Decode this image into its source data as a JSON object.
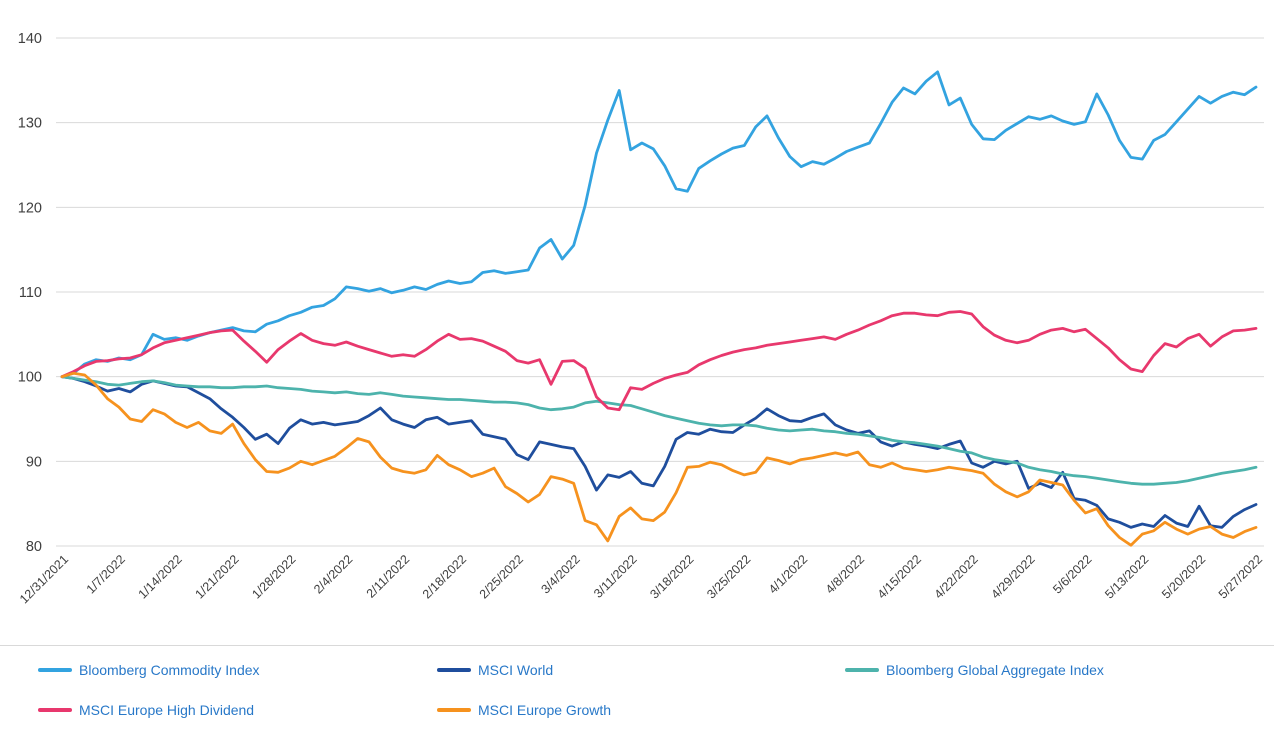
{
  "chart_data": {
    "type": "line",
    "title": "",
    "xlabel": "",
    "ylabel": "",
    "ylim": [
      80,
      140
    ],
    "y_ticks": [
      80,
      90,
      100,
      110,
      120,
      130,
      140
    ],
    "grid": "horizontal",
    "legend_position": "bottom",
    "points_per_interval": 5,
    "axis_text_color": "#3f3f3f",
    "grid_color": "#d9d9d9",
    "legend_text_color": "#2878c8",
    "x_tick_labels": [
      "12/31/2021",
      "1/7/2022",
      "1/14/2022",
      "1/21/2022",
      "1/28/2022",
      "2/4/2022",
      "2/11/2022",
      "2/18/2022",
      "2/25/2022",
      "3/4/2022",
      "3/11/2022",
      "3/18/2022",
      "3/25/2022",
      "4/1/2022",
      "4/8/2022",
      "4/15/2022",
      "4/22/2022",
      "4/29/2022",
      "5/6/2022",
      "5/13/2022",
      "5/20/2022",
      "5/27/2022"
    ],
    "series": [
      {
        "name": "Bloomberg Commodity Index",
        "color": "#33a3e0",
        "values": [
          100,
          100.4,
          101.5,
          102.0,
          101.8,
          102.2,
          102.0,
          102.6,
          105.0,
          104.4,
          104.6,
          104.3,
          104.8,
          105.2,
          105.5,
          105.8,
          105.4,
          105.3,
          106.2,
          106.6,
          107.2,
          107.6,
          108.2,
          108.4,
          109.2,
          110.6,
          110.4,
          110.1,
          110.4,
          109.9,
          110.2,
          110.6,
          110.3,
          110.9,
          111.3,
          111.0,
          111.2,
          112.3,
          112.5,
          112.2,
          112.4,
          112.6,
          115.2,
          116.2,
          113.9,
          115.5,
          120.2,
          126.4,
          130.3,
          133.8,
          126.8,
          127.6,
          126.9,
          124.9,
          122.2,
          121.9,
          124.6,
          125.5,
          126.3,
          127.0,
          127.3,
          129.5,
          130.8,
          128.2,
          126.0,
          124.8,
          125.4,
          125.1,
          125.8,
          126.6,
          127.1,
          127.6,
          129.9,
          132.4,
          134.1,
          133.4,
          134.9,
          136.0,
          132.1,
          132.9,
          129.8,
          128.1,
          128.0,
          129.1,
          129.9,
          130.7,
          130.4,
          130.8,
          130.2,
          129.8,
          130.1,
          133.4,
          130.9,
          127.9,
          125.9,
          125.7,
          127.9,
          128.6,
          130.1,
          131.6,
          133.1,
          132.3,
          133.1,
          133.6,
          133.3,
          134.2
        ]
      },
      {
        "name": "MSCI World",
        "color": "#1f4e9d",
        "values": [
          100,
          99.8,
          99.4,
          98.9,
          98.3,
          98.6,
          98.2,
          99.1,
          99.5,
          99.2,
          98.9,
          98.8,
          98.1,
          97.4,
          96.2,
          95.2,
          94.0,
          92.6,
          93.2,
          92.1,
          93.9,
          94.9,
          94.4,
          94.6,
          94.3,
          94.5,
          94.7,
          95.4,
          96.3,
          94.9,
          94.4,
          94.0,
          94.9,
          95.2,
          94.4,
          94.6,
          94.8,
          93.2,
          92.9,
          92.6,
          90.8,
          90.2,
          92.3,
          92.0,
          91.7,
          91.5,
          89.4,
          86.6,
          88.4,
          88.1,
          88.8,
          87.4,
          87.1,
          89.4,
          92.6,
          93.4,
          93.2,
          93.8,
          93.5,
          93.4,
          94.3,
          95.1,
          96.2,
          95.4,
          94.8,
          94.7,
          95.2,
          95.6,
          94.3,
          93.7,
          93.3,
          93.6,
          92.3,
          91.8,
          92.3,
          92.0,
          91.8,
          91.5,
          92.0,
          92.4,
          89.8,
          89.3,
          90.0,
          89.7,
          90.0,
          86.8,
          87.4,
          86.9,
          88.7,
          85.6,
          85.4,
          84.8,
          83.2,
          82.8,
          82.2,
          82.6,
          82.3,
          83.6,
          82.7,
          82.3,
          84.7,
          82.4,
          82.2,
          83.5,
          84.3,
          84.9
        ]
      },
      {
        "name": "Bloomberg Global Aggregate Index",
        "color": "#4db3ac",
        "values": [
          100,
          99.8,
          99.6,
          99.4,
          99.1,
          99.0,
          99.2,
          99.4,
          99.5,
          99.3,
          99.0,
          98.9,
          98.8,
          98.8,
          98.7,
          98.7,
          98.8,
          98.8,
          98.9,
          98.7,
          98.6,
          98.5,
          98.3,
          98.2,
          98.1,
          98.2,
          98.0,
          97.9,
          98.1,
          97.9,
          97.7,
          97.6,
          97.5,
          97.4,
          97.3,
          97.3,
          97.2,
          97.1,
          97.0,
          97.0,
          96.9,
          96.7,
          96.3,
          96.1,
          96.2,
          96.4,
          96.9,
          97.1,
          96.9,
          96.7,
          96.6,
          96.2,
          95.8,
          95.4,
          95.1,
          94.8,
          94.5,
          94.3,
          94.2,
          94.3,
          94.3,
          94.2,
          93.9,
          93.7,
          93.6,
          93.7,
          93.8,
          93.6,
          93.5,
          93.3,
          93.2,
          93.0,
          92.8,
          92.5,
          92.3,
          92.2,
          92.0,
          91.8,
          91.5,
          91.2,
          91.0,
          90.5,
          90.2,
          90.0,
          89.8,
          89.3,
          89.0,
          88.8,
          88.5,
          88.3,
          88.2,
          88.0,
          87.8,
          87.6,
          87.4,
          87.3,
          87.3,
          87.4,
          87.5,
          87.7,
          88.0,
          88.3,
          88.6,
          88.8,
          89.0,
          89.3
        ]
      },
      {
        "name": "MSCI Europe High Dividend",
        "color": "#e8386d",
        "values": [
          100,
          100.6,
          101.3,
          101.8,
          101.9,
          102.1,
          102.2,
          102.6,
          103.4,
          104.0,
          104.3,
          104.6,
          104.9,
          105.2,
          105.4,
          105.5,
          104.2,
          103.0,
          101.7,
          103.2,
          104.2,
          105.1,
          104.3,
          103.9,
          103.7,
          104.1,
          103.6,
          103.2,
          102.8,
          102.4,
          102.6,
          102.4,
          103.2,
          104.2,
          105.0,
          104.4,
          104.5,
          104.2,
          103.6,
          103.0,
          101.9,
          101.6,
          102.0,
          99.1,
          101.8,
          101.9,
          101.0,
          97.6,
          96.3,
          96.1,
          98.7,
          98.5,
          99.2,
          99.8,
          100.2,
          100.5,
          101.4,
          102.0,
          102.5,
          102.9,
          103.2,
          103.4,
          103.7,
          103.9,
          104.1,
          104.3,
          104.5,
          104.7,
          104.4,
          105.0,
          105.5,
          106.1,
          106.6,
          107.2,
          107.5,
          107.5,
          107.3,
          107.2,
          107.6,
          107.7,
          107.4,
          105.9,
          104.9,
          104.3,
          104.0,
          104.3,
          105.0,
          105.5,
          105.7,
          105.3,
          105.6,
          104.5,
          103.4,
          102.0,
          100.9,
          100.6,
          102.5,
          103.9,
          103.5,
          104.5,
          105.0,
          103.6,
          104.7,
          105.4,
          105.5,
          105.7
        ]
      },
      {
        "name": "MSCI Europe Growth",
        "color": "#f6921e",
        "values": [
          100,
          100.4,
          100.2,
          99.0,
          97.4,
          96.4,
          95.0,
          94.7,
          96.1,
          95.6,
          94.6,
          94.0,
          94.6,
          93.6,
          93.3,
          94.4,
          92.1,
          90.2,
          88.8,
          88.7,
          89.2,
          90.0,
          89.6,
          90.1,
          90.6,
          91.6,
          92.7,
          92.3,
          90.5,
          89.2,
          88.8,
          88.6,
          89.0,
          90.7,
          89.6,
          89.0,
          88.2,
          88.6,
          89.2,
          87.0,
          86.2,
          85.2,
          86.1,
          88.2,
          87.9,
          87.4,
          83.0,
          82.5,
          80.6,
          83.5,
          84.5,
          83.2,
          83.0,
          84.0,
          86.3,
          89.3,
          89.4,
          89.9,
          89.6,
          88.9,
          88.4,
          88.7,
          90.4,
          90.1,
          89.7,
          90.2,
          90.4,
          90.7,
          91.0,
          90.7,
          91.1,
          89.6,
          89.3,
          89.8,
          89.2,
          89.0,
          88.8,
          89.0,
          89.3,
          89.1,
          88.9,
          88.6,
          87.3,
          86.4,
          85.8,
          86.4,
          87.8,
          87.5,
          87.2,
          85.4,
          83.9,
          84.4,
          82.4,
          81.0,
          80.1,
          81.4,
          81.8,
          82.8,
          82.0,
          81.4,
          82.0,
          82.3,
          81.4,
          81.0,
          81.7,
          82.2
        ]
      }
    ]
  }
}
